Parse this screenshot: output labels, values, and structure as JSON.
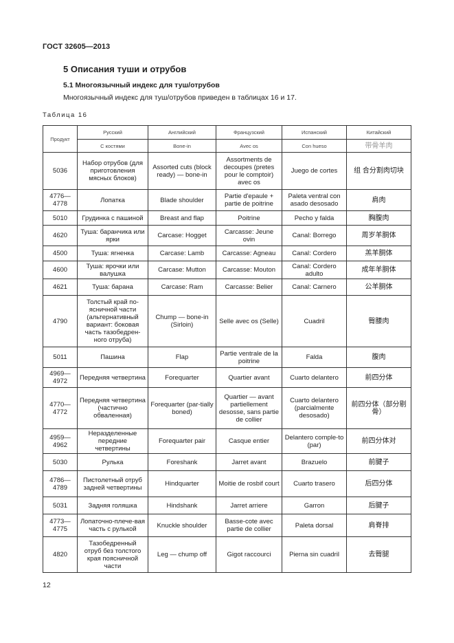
{
  "standard": "ГОСТ 32605—2013",
  "section_title": "5 Описания туши и отрубов",
  "subsection_title": "5.1 Многоязычный индекс для туш/отрубов",
  "intro": "Многоязычный индекс для туш/отрубов приведен в таблицах 16 и 17.",
  "table_caption": "Таблица 16",
  "table": {
    "header": {
      "product": "Продукт",
      "languages": [
        "Русский",
        "Английский",
        "Французский",
        "Испанский",
        "Китайский"
      ],
      "subheaders": [
        "С костями",
        "Bone-in",
        "Avec os",
        "Con hueso",
        "带骨羊肉"
      ]
    },
    "rows": [
      {
        "code": "5036",
        "ru": "Набор отрубов (для приготовления мясных блоков)",
        "en": "Assorted cuts (block ready) — bone-in",
        "fr": "Assortments de decoupes (pretes pour le comptoir) avec os",
        "es": "Juego de cortes",
        "zh": "组 合分割肉切块"
      },
      {
        "code": "4776—4778",
        "ru": "Лопатка",
        "en": "Blade shoulder",
        "fr": "Partie d'epaule + partie de poitrine",
        "es": "Paleta ventral con asado desosado",
        "zh": "肩肉"
      },
      {
        "code": "5010",
        "ru": "Грудинка с пашиной",
        "en": "Breast and flap",
        "fr": "Poitrine",
        "es": "Pecho y falda",
        "zh": "胸腹肉"
      },
      {
        "code": "4620",
        "ru": "Туша: баранчика или ярки",
        "en": "Carcase: Hogget",
        "fr": "Carcasse: Jeune ovin",
        "es": "Canal: Borrego",
        "zh": "周岁羊胴体"
      },
      {
        "code": "4500",
        "ru": "Туша: ягненка",
        "en": "Carcase: Lamb",
        "fr": "Carcasse: Agneau",
        "es": "Canal: Cordero",
        "zh": "羔羊胴体"
      },
      {
        "code": "4600",
        "ru": "Туша: ярочки или валушка",
        "en": "Carcase: Mutton",
        "fr": "Carcasse: Mouton",
        "es": "Canal: Cordero adulto",
        "zh": "成年羊胴体"
      },
      {
        "code": "4621",
        "ru": "Туша: барана",
        "en": "Carcase: Ram",
        "fr": "Carcasse: Belier",
        "es": "Canal: Carnero",
        "zh": "公羊胴体"
      },
      {
        "code": "4790",
        "ru": "Толстый край по-ясничной части (альтернативный вариант: боковая часть тазобедрен-ного отруба)",
        "en": "Chump — bone-in (Sirloin)",
        "fr": "Selle avec os (Selle)",
        "es": "Cuadril",
        "zh": "臀腰肉"
      },
      {
        "code": "5011",
        "ru": "Пашина",
        "en": "Flap",
        "fr": "Partie ventrale de la poitrine",
        "es": "Falda",
        "zh": "腹肉"
      },
      {
        "code": "4969—4972",
        "ru": "Передняя четвертина",
        "en": "Forequarter",
        "fr": "Quartier avant",
        "es": "Cuarto delantero",
        "zh": "前四分体"
      },
      {
        "code": "4770—4772",
        "ru": "Передняя четвертина (частично обваленная)",
        "en": "Forequarter (par-tially boned)",
        "fr": "Quartier — avant partiellement desosse, sans partie de collier",
        "es": "Cuarto delantero (parcialmente desosado)",
        "zh": "前四分体（部分剔 骨）"
      },
      {
        "code": "4959—4962",
        "ru": "Неразделенные передние четвертины",
        "en": "Forequarter pair",
        "fr": "Casque entier",
        "es": "Delantero comple-to (par)",
        "zh": "前四分体对"
      },
      {
        "code": "5030",
        "ru": "Рулька",
        "en": "Foreshank",
        "fr": "Jarret avant",
        "es": "Brazuelo",
        "zh": "前腱子"
      },
      {
        "code": "4786—4789",
        "ru": "Пистолетный отруб задней четвертины",
        "en": "Hindquarter",
        "fr": "Moitie de rosbif court",
        "es": "Cuarto trasero",
        "zh": "后四分体"
      },
      {
        "code": "5031",
        "ru": "Задняя голяшка",
        "en": "Hindshank",
        "fr": "Jarret arriere",
        "es": "Garron",
        "zh": "后腱子"
      },
      {
        "code": "4773—4775",
        "ru": "Лопаточно-плече-вая часть с рулькой",
        "en": "Knuckle shoulder",
        "fr": "Basse-cote avec partie de collier",
        "es": "Paleta dorsal",
        "zh": "肩脊排"
      },
      {
        "code": "4820",
        "ru": "Тазобедренный отруб без толстого края поясничной части",
        "en": "Leg — chump off",
        "fr": "Gigot raccourci",
        "es": "Pierna sin cuadril",
        "zh": "去臀腿"
      }
    ]
  },
  "page_number": "12"
}
